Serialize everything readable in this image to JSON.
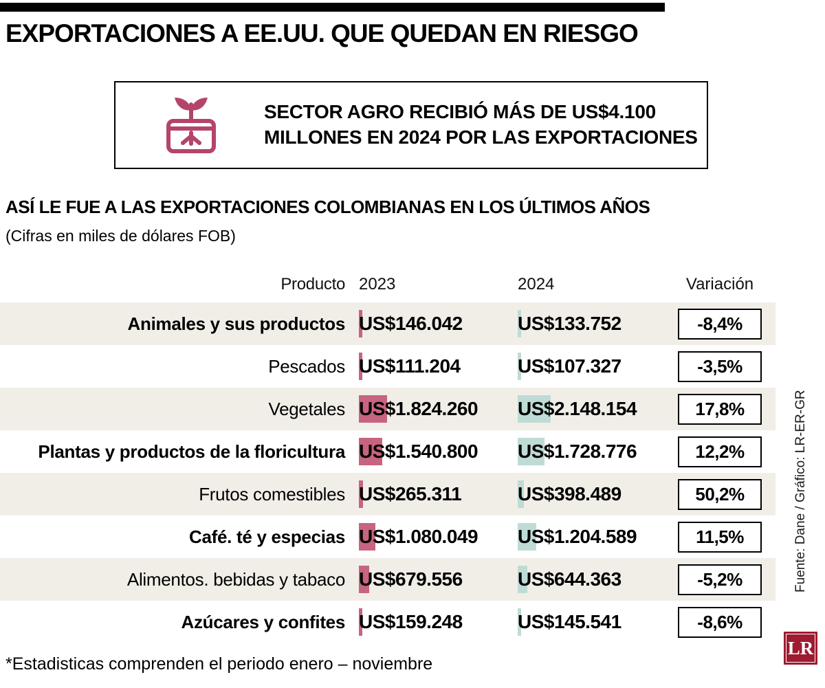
{
  "title": "EXPORTACIONES A EE.UU. QUE QUEDAN EN RIESGO",
  "callout": {
    "line1": "SECTOR AGRO RECIBIÓ MÁS DE US$4.100",
    "line2": "MILLONES EN 2024 POR LAS EXPORTACIONES",
    "icon": "seedling-pot-icon"
  },
  "section": {
    "heading": "ASÍ LE FUE A LAS EXPORTACIONES COLOMBIANAS EN LOS ÚLTIMOS AÑOS",
    "subheading": "(Cifras en miles de dólares FOB)"
  },
  "chart_data": {
    "type": "table",
    "columns": [
      "Producto",
      "2023",
      "2024",
      "Variación"
    ],
    "units": "miles de dólares FOB",
    "rows": [
      {
        "producto": "Animales y sus productos",
        "bold": true,
        "v2023": 146042,
        "v2023_label": "US$146.042",
        "v2024": 133752,
        "v2024_label": "US$133.752",
        "variacion": "-8,4%"
      },
      {
        "producto": "Pescados",
        "bold": false,
        "v2023": 111204,
        "v2023_label": "US$111.204",
        "v2024": 107327,
        "v2024_label": "US$107.327",
        "variacion": "-3,5%"
      },
      {
        "producto": "Vegetales",
        "bold": false,
        "v2023": 1824260,
        "v2023_label": "US$1.824.260",
        "v2024": 2148154,
        "v2024_label": "US$2.148.154",
        "variacion": "17,8%"
      },
      {
        "producto": "Plantas y productos de la floricultura",
        "bold": true,
        "v2023": 1540800,
        "v2023_label": "US$1.540.800",
        "v2024": 1728776,
        "v2024_label": "US$1.728.776",
        "variacion": "12,2%"
      },
      {
        "producto": "Frutos comestibles",
        "bold": false,
        "v2023": 265311,
        "v2023_label": "US$265.311",
        "v2024": 398489,
        "v2024_label": "US$398.489",
        "variacion": "50,2%"
      },
      {
        "producto": "Café. té y especias",
        "bold": true,
        "v2023": 1080049,
        "v2023_label": "US$1.080.049",
        "v2024": 1204589,
        "v2024_label": "US$1.204.589",
        "variacion": "11,5%"
      },
      {
        "producto": "Alimentos. bebidas y tabaco",
        "bold": false,
        "v2023": 679556,
        "v2023_label": "US$679.556",
        "v2024": 644363,
        "v2024_label": "US$644.363",
        "variacion": "-5,2%"
      },
      {
        "producto": "Azúcares y confites",
        "bold": true,
        "v2023": 159248,
        "v2023_label": "US$159.248",
        "v2024": 145541,
        "v2024_label": "US$145.541",
        "variacion": "-8,6%"
      }
    ]
  },
  "footnote": "*Estadisticas comprenden el periodo enero – noviembre",
  "credit": "Fuente: Dane / Gráfico: LR-ER-GR",
  "logo_text": "LR",
  "colors": {
    "bar_2023": "#c76480",
    "bar_2024": "#bfdbd5",
    "row_alt": "#f1eee8",
    "accent_icon": "#b5446a",
    "logo_bg": "#9e1b30"
  }
}
